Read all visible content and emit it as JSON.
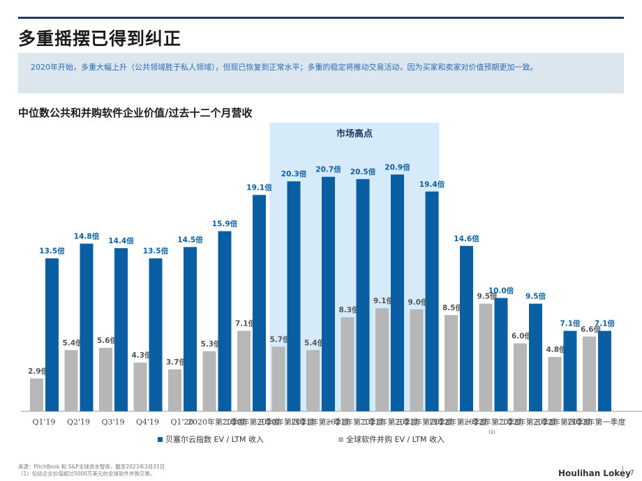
{
  "title": "多重摇摆已得到纠正",
  "summary": "2020年开始，多重大幅上升（公共领域胜于私人领域），但现已恢复到正常水平；多重的稳定将推动交易活动，因为买家和卖家对价值预期更加一致。",
  "chart_title": "中位数公共和并购软件企业价值/过去十二个月营收",
  "chart_data": {
    "type": "bar",
    "title": "中位数公共和并购软件企业价值/过去十二个月营收",
    "categories": [
      "Q1'19",
      "Q2'19",
      "Q3'19",
      "Q4'19",
      "Q1'20",
      "2020年第二季度",
      "2020年第三季度",
      "2020年第四季度",
      "2021年第一季度",
      "2021年第二季度",
      "2021年第三季度",
      "2021年第四季度",
      "2022年第一季度",
      "2022年第二季度",
      "2022年第三季度",
      "2022年第四季度",
      "2023年第一季度"
    ],
    "series": [
      {
        "name": "全球软件并购 EV / LTM 收入",
        "color": "#b7b7b7",
        "values": [
          2.9,
          5.4,
          5.6,
          4.3,
          3.7,
          5.3,
          7.1,
          5.7,
          5.4,
          8.3,
          9.1,
          9.0,
          8.5,
          9.5,
          6.0,
          4.8,
          6.6
        ]
      },
      {
        "name": "贝塞尔云指数 EV / LTM 收入",
        "color": "#0a5fa3",
        "values": [
          13.5,
          14.8,
          14.4,
          13.5,
          14.5,
          15.9,
          19.1,
          20.3,
          20.7,
          20.5,
          20.9,
          19.4,
          14.6,
          10.0,
          9.5,
          7.1,
          7.1
        ]
      }
    ],
    "value_suffix": "倍",
    "ylim": [
      0,
      24
    ],
    "highlight": {
      "label": "市场高点",
      "from_index": 7,
      "to_index": 11,
      "color": "#d6ebfa"
    },
    "footnote_marker": {
      "index": 13,
      "text": "(1)"
    }
  },
  "legend": {
    "cloud": "贝塞尔云指数 EV / LTM 收入",
    "ma": "全球软件并购 EV / LTM 收入"
  },
  "footnotes": {
    "source": "来源：PitchBook 和 S&P全球资本智库，截至2023年3月31日",
    "note1": "（1）包括企业价值超过5000万美元的全球软件并购交易。"
  },
  "brand": "Houlihan Lokey",
  "page_number": "7"
}
